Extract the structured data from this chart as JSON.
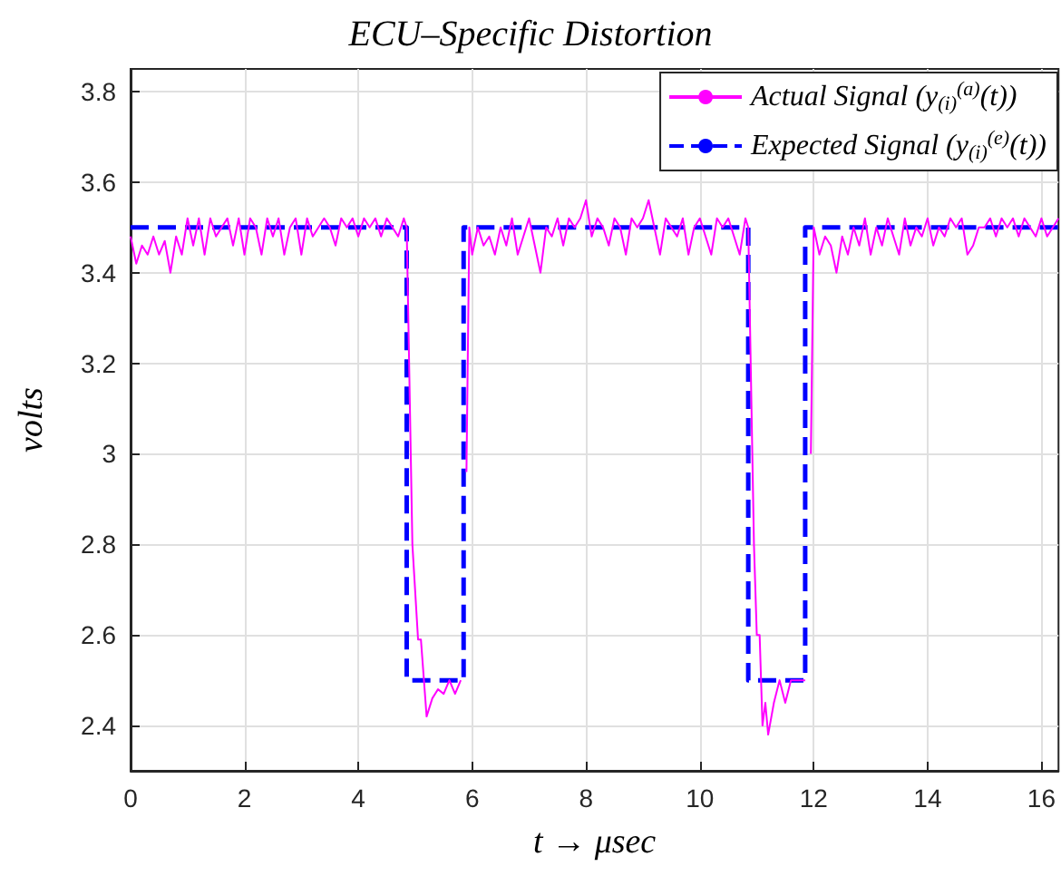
{
  "chart_data": {
    "type": "line",
    "title": "ECU–Specific Distortion",
    "xlabel": "t → μsec",
    "ylabel": "volts",
    "xlim": [
      0,
      16.3
    ],
    "xticks": [
      0,
      2,
      4,
      6,
      8,
      10,
      12,
      14,
      16
    ],
    "ylim": [
      2.3,
      3.85
    ],
    "yticks": [
      2.4,
      2.6,
      2.8,
      3,
      3.2,
      3.4,
      3.6,
      3.8
    ],
    "grid": true,
    "legend": "top right",
    "marker": "none",
    "series": [
      {
        "name": "Actual Signal (y$_{(i)}$$^{(a)}$(t))",
        "color": "#ff00ff",
        "line_style": "solid",
        "x": [
          0,
          0.1,
          0.2,
          0.3,
          0.4,
          0.5,
          0.6,
          0.7,
          0.8,
          0.9,
          1,
          1.1,
          1.2,
          1.3,
          1.4,
          1.5,
          1.6,
          1.7,
          1.8,
          1.9,
          2,
          2.1,
          2.2,
          2.3,
          2.4,
          2.5,
          2.6,
          2.7,
          2.8,
          2.9,
          3,
          3.1,
          3.2,
          3.3,
          3.4,
          3.5,
          3.6,
          3.7,
          3.8,
          3.9,
          4,
          4.1,
          4.2,
          4.3,
          4.4,
          4.5,
          4.6,
          4.7,
          4.8,
          4.85,
          4.95,
          5.05,
          5.1,
          5.2,
          5.3,
          5.4,
          5.5,
          5.6,
          5.7,
          5.8,
          5.85,
          5.9,
          5.95,
          6,
          6.1,
          6.2,
          6.3,
          6.4,
          6.5,
          6.6,
          6.7,
          6.8,
          6.9,
          7,
          7.1,
          7.2,
          7.3,
          7.4,
          7.5,
          7.6,
          7.7,
          7.8,
          7.9,
          8,
          8.1,
          8.2,
          8.3,
          8.4,
          8.5,
          8.6,
          8.7,
          8.8,
          8.9,
          9,
          9.1,
          9.2,
          9.3,
          9.4,
          9.5,
          9.6,
          9.7,
          9.8,
          9.9,
          10,
          10.1,
          10.2,
          10.3,
          10.4,
          10.5,
          10.6,
          10.7,
          10.8,
          10.85,
          10.95,
          11,
          11.05,
          11.1,
          11.15,
          11.2,
          11.3,
          11.4,
          11.5,
          11.6,
          11.7,
          11.8,
          11.85,
          11.9,
          11.95,
          12,
          12.1,
          12.2,
          12.3,
          12.4,
          12.5,
          12.6,
          12.7,
          12.8,
          12.9,
          13,
          13.1,
          13.2,
          13.3,
          13.4,
          13.5,
          13.6,
          13.7,
          13.8,
          13.9,
          14,
          14.1,
          14.2,
          14.3,
          14.4,
          14.5,
          14.6,
          14.7,
          14.8,
          14.9,
          15,
          15.1,
          15.2,
          15.3,
          15.4,
          15.5,
          15.6,
          15.7,
          15.8,
          15.9,
          16,
          16.1,
          16.2,
          16.3
        ],
        "values": [
          3.48,
          3.42,
          3.46,
          3.44,
          3.48,
          3.44,
          3.47,
          3.4,
          3.48,
          3.44,
          3.52,
          3.46,
          3.52,
          3.44,
          3.52,
          3.48,
          3.5,
          3.52,
          3.46,
          3.52,
          3.44,
          3.52,
          3.5,
          3.44,
          3.52,
          3.48,
          3.52,
          3.44,
          3.5,
          3.52,
          3.44,
          3.52,
          3.48,
          3.5,
          3.52,
          3.5,
          3.46,
          3.52,
          3.5,
          3.52,
          3.48,
          3.52,
          3.5,
          3.52,
          3.48,
          3.52,
          3.5,
          3.48,
          3.52,
          3.5,
          2.8,
          2.59,
          2.59,
          2.42,
          2.46,
          2.48,
          2.47,
          2.5,
          2.47,
          2.5,
          null,
          2.96,
          3.5,
          3.44,
          3.5,
          3.46,
          3.48,
          3.44,
          3.5,
          3.46,
          3.52,
          3.44,
          3.48,
          3.52,
          3.46,
          3.4,
          3.5,
          3.48,
          3.52,
          3.46,
          3.52,
          3.5,
          3.52,
          3.56,
          3.48,
          3.52,
          3.5,
          3.46,
          3.52,
          3.5,
          3.44,
          3.52,
          3.5,
          3.52,
          3.56,
          3.5,
          3.44,
          3.52,
          3.5,
          3.48,
          3.52,
          3.44,
          3.5,
          3.52,
          3.48,
          3.44,
          3.52,
          3.5,
          3.52,
          3.48,
          3.44,
          3.52,
          3.5,
          2.8,
          2.6,
          2.6,
          2.4,
          2.45,
          2.38,
          2.45,
          2.5,
          2.45,
          2.5,
          2.5,
          2.5,
          2.5,
          null,
          3.0,
          3.5,
          3.44,
          3.48,
          3.46,
          3.4,
          3.48,
          3.44,
          3.5,
          3.46,
          3.52,
          3.44,
          3.5,
          3.46,
          3.52,
          3.48,
          3.44,
          3.52,
          3.46,
          3.5,
          3.48,
          3.52,
          3.46,
          3.5,
          3.48,
          3.52,
          3.5,
          3.52,
          3.44,
          3.46,
          3.5,
          3.5,
          3.52,
          3.48,
          3.52,
          3.5,
          3.52,
          3.48,
          3.52,
          3.5,
          3.48,
          3.52,
          3.48,
          3.5,
          3.52
        ]
      },
      {
        "name": "Expected Signal (y$_{(i)}$$^{(e)}$(t))",
        "color": "#0000ff",
        "line_style": "dashed",
        "x": [
          0,
          4.85,
          4.85,
          5.85,
          5.85,
          10.85,
          10.85,
          11.85,
          11.85,
          16.3
        ],
        "values": [
          3.5,
          3.5,
          2.5,
          2.5,
          3.5,
          3.5,
          2.5,
          2.5,
          3.5,
          3.5
        ]
      }
    ]
  }
}
